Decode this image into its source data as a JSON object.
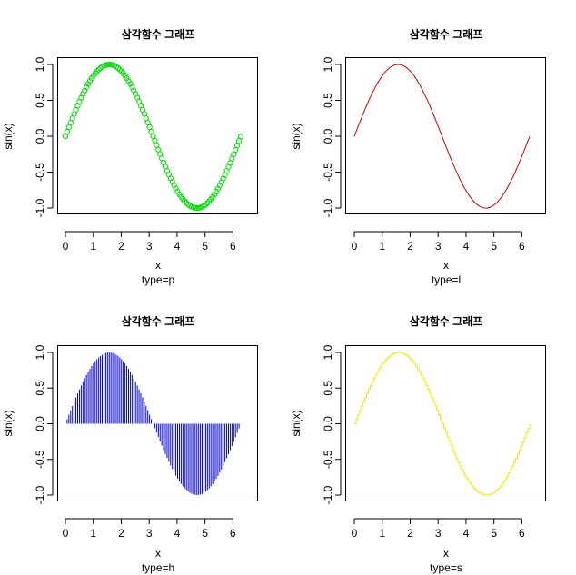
{
  "chart_data": [
    {
      "type": "scatter",
      "plot_type_code": "p",
      "title": "삼각함수 그래프",
      "xlabel": "x",
      "subtitle": "type=p",
      "ylabel": "sin(x)",
      "color": "#00dd00",
      "function": "sin",
      "x_start": 0,
      "x_end": 6.28,
      "x_step": 0.0628,
      "xlim": [
        0,
        6.28
      ],
      "ylim": [
        -1,
        1
      ],
      "x_ticks": [
        "0",
        "1",
        "2",
        "3",
        "4",
        "5",
        "6"
      ],
      "y_ticks": [
        "-1.0",
        "-0.5",
        "0.0",
        "0.5",
        "1.0"
      ]
    },
    {
      "type": "line",
      "plot_type_code": "l",
      "title": "삼각함수 그래프",
      "xlabel": "x",
      "subtitle": "type=l",
      "ylabel": "sin(x)",
      "color": "#cc0000",
      "function": "sin",
      "x_start": 0,
      "x_end": 6.28,
      "x_step": 0.0628,
      "xlim": [
        0,
        6.28
      ],
      "ylim": [
        -1,
        1
      ],
      "x_ticks": [
        "0",
        "1",
        "2",
        "3",
        "4",
        "5",
        "6"
      ],
      "y_ticks": [
        "-1.0",
        "-0.5",
        "0.0",
        "0.5",
        "1.0"
      ]
    },
    {
      "type": "bar",
      "plot_type_code": "h",
      "title": "삼각함수 그래프",
      "xlabel": "x",
      "subtitle": "type=h",
      "ylabel": "sin(x)",
      "color": "#0000cc",
      "function": "sin",
      "x_start": 0,
      "x_end": 6.28,
      "x_step": 0.0628,
      "xlim": [
        0,
        6.28
      ],
      "ylim": [
        -1,
        1
      ],
      "x_ticks": [
        "0",
        "1",
        "2",
        "3",
        "4",
        "5",
        "6"
      ],
      "y_ticks": [
        "-1.0",
        "-0.5",
        "0.0",
        "0.5",
        "1.0"
      ]
    },
    {
      "type": "line",
      "plot_type_code": "s",
      "title": "삼각함수 그래프",
      "xlabel": "x",
      "subtitle": "type=s",
      "ylabel": "sin(x)",
      "color": "#f5e600",
      "function": "sin",
      "x_start": 0,
      "x_end": 6.28,
      "x_step": 0.0628,
      "xlim": [
        0,
        6.28
      ],
      "ylim": [
        -1,
        1
      ],
      "x_ticks": [
        "0",
        "1",
        "2",
        "3",
        "4",
        "5",
        "6"
      ],
      "y_ticks": [
        "-1.0",
        "-0.5",
        "0.0",
        "0.5",
        "1.0"
      ]
    }
  ]
}
